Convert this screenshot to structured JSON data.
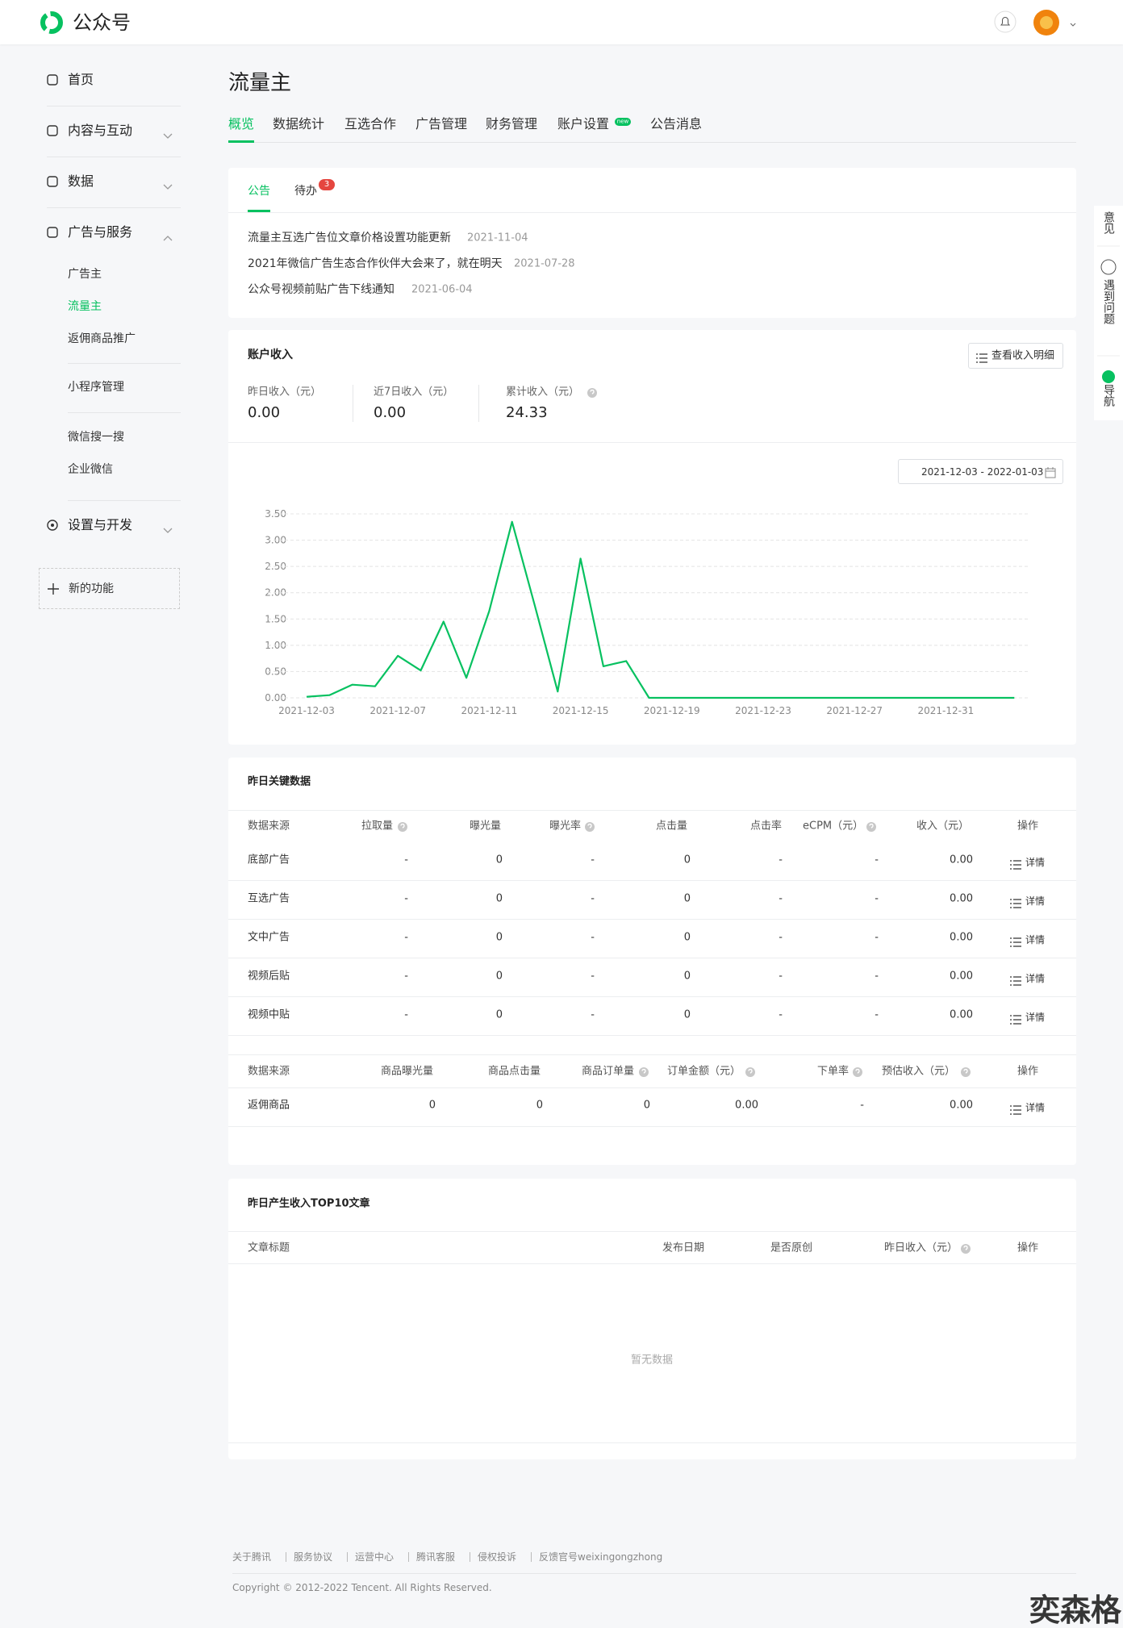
{
  "header": {
    "logo_text": "公众号"
  },
  "sidebar": {
    "items": [
      "首页",
      "内容与互动",
      "数据",
      "广告与服务"
    ],
    "sub_items": [
      "广告主",
      "流量主",
      "返佣商品推广",
      "小程序管理",
      "微信搜一搜",
      "企业微信"
    ],
    "settings": "设置与开发",
    "new_feature": "新的功能"
  },
  "page": {
    "title": "流量主",
    "tabs": [
      "概览",
      "数据统计",
      "互选合作",
      "广告管理",
      "财务管理",
      "账户设置",
      "公告消息"
    ],
    "tab_badge": "new"
  },
  "notice_card": {
    "tabs": [
      "公告",
      "待办"
    ],
    "todo_count": 3,
    "notices": [
      {
        "text": "流量主互选广告位文章价格设置功能更新",
        "date": "2021-11-04"
      },
      {
        "text": "2021年微信广告生态合作伙伴大会来了，就在明天",
        "date": "2021-07-28"
      },
      {
        "text": "公众号视频前贴广告下线通知",
        "date": "2021-06-04"
      }
    ]
  },
  "income_card": {
    "title": "账户收入",
    "detail_button": "查看收入明细",
    "stats": [
      {
        "label": "昨日收入（元）",
        "value": "0.00"
      },
      {
        "label": "近7日收入（元）",
        "value": "0.00"
      },
      {
        "label": "累计收入（元）",
        "value": "24.33"
      }
    ],
    "date_range": "2021-12-03 - 2022-01-03"
  },
  "chart_data": {
    "type": "line",
    "color": "#07c160",
    "grid": true,
    "categories": [
      "2021-12-03",
      null,
      null,
      null,
      "2021-12-07",
      null,
      null,
      null,
      "2021-12-11",
      null,
      null,
      null,
      "2021-12-15",
      null,
      null,
      null,
      "2021-12-19",
      null,
      null,
      null,
      "2021-12-23",
      null,
      null,
      null,
      "2021-12-27",
      null,
      null,
      null,
      "2021-12-31",
      null,
      null,
      null
    ],
    "values": [
      0.02,
      0.05,
      0.25,
      0.22,
      0.8,
      0.52,
      1.45,
      0.38,
      1.65,
      3.35,
      1.75,
      0.12,
      2.65,
      0.6,
      0.7,
      0,
      0,
      0,
      0,
      0,
      0,
      0,
      0,
      0,
      0,
      0,
      0,
      0,
      0,
      0,
      0,
      0
    ],
    "ylim": [
      0,
      3.5
    ],
    "yticks": [
      {
        "value": 0,
        "label": "0.00"
      },
      {
        "value": 0.5,
        "label": "0.50"
      },
      {
        "value": 1,
        "label": "1.00"
      },
      {
        "value": 1.5,
        "label": "1.50"
      },
      {
        "value": 2,
        "label": "2.00"
      },
      {
        "value": 2.5,
        "label": "2.50"
      },
      {
        "value": 3,
        "label": "3.00"
      },
      {
        "value": 3.5,
        "label": "3.50"
      }
    ]
  },
  "key_data": {
    "title": "昨日关键数据",
    "action": "详情",
    "ad_table": {
      "columns": [
        "数据来源",
        "拉取量",
        "曝光量",
        "曝光率",
        "点击量",
        "点击率",
        "eCPM（元）",
        "收入（元）",
        "操作"
      ],
      "rows": [
        [
          "底部广告",
          "-",
          "0",
          "-",
          "0",
          "-",
          "-",
          "0.00"
        ],
        [
          "互选广告",
          "-",
          "0",
          "-",
          "0",
          "-",
          "-",
          "0.00"
        ],
        [
          "文中广告",
          "-",
          "0",
          "-",
          "0",
          "-",
          "-",
          "0.00"
        ],
        [
          "视频后贴",
          "-",
          "0",
          "-",
          "0",
          "-",
          "-",
          "0.00"
        ],
        [
          "视频中贴",
          "-",
          "0",
          "-",
          "0",
          "-",
          "-",
          "0.00"
        ]
      ]
    },
    "commerce_table": {
      "columns": [
        "数据来源",
        "商品曝光量",
        "商品点击量",
        "商品订单量",
        "订单金额（元）",
        "下单率",
        "预估收入（元）",
        "操作"
      ],
      "rows": [
        [
          "返佣商品",
          "0",
          "0",
          "0",
          "0.00",
          "-",
          "0.00"
        ]
      ]
    }
  },
  "top10": {
    "title": "昨日产生收入TOP10文章",
    "columns": [
      "文章标题",
      "发布日期",
      "是否原创",
      "昨日收入（元）",
      "操作"
    ],
    "empty": "暂无数据"
  },
  "footer": {
    "links": [
      "关于腾讯",
      "服务协议",
      "运营中心",
      "腾讯客服",
      "侵权投诉",
      "反馈官号weixingongzhong"
    ],
    "copyright": "Copyright © 2012-2022 Tencent. All Rights Reserved."
  },
  "float_bar": [
    "意见",
    "遇到问题",
    "导航"
  ],
  "watermark": "奕森格"
}
